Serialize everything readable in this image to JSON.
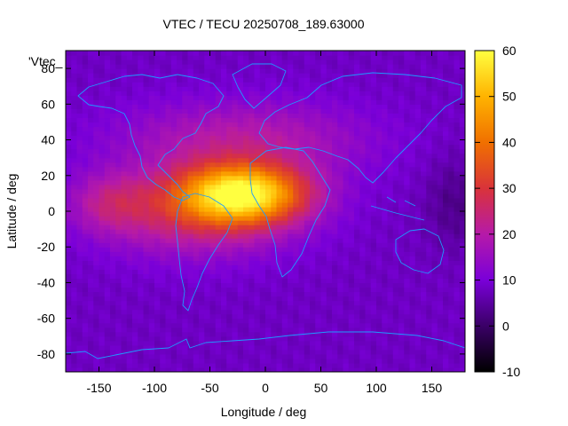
{
  "chart_data": {
    "type": "heatmap",
    "title": "VTEC / TECU 20250708_189.63000",
    "series_key": "'Vtec_",
    "xlabel": "Longitude / deg",
    "ylabel": "Latitude / deg",
    "xlim": [
      -180,
      180
    ],
    "ylim": [
      -90,
      90
    ],
    "xticks": [
      -150,
      -100,
      -50,
      0,
      50,
      100,
      150
    ],
    "yticks": [
      -80,
      -60,
      -40,
      -20,
      0,
      20,
      40,
      60,
      80
    ],
    "colorbar": {
      "range": [
        -10,
        60
      ],
      "ticks": [
        60,
        50,
        40,
        30,
        20,
        10,
        0,
        -10
      ],
      "palette": [
        "#000000",
        "#3a0066",
        "#7a00d9",
        "#b61aa8",
        "#d9333a",
        "#f07000",
        "#ffb300",
        "#ffff40"
      ]
    },
    "field_summary": {
      "background_vtec": 8,
      "peak_vtec": 52,
      "peak_location_lon_lat": [
        -20,
        10
      ],
      "high_band_lat_range": [
        -30,
        30
      ],
      "high_band_lon_range": [
        -160,
        60
      ]
    },
    "overlay": "coastlines"
  }
}
